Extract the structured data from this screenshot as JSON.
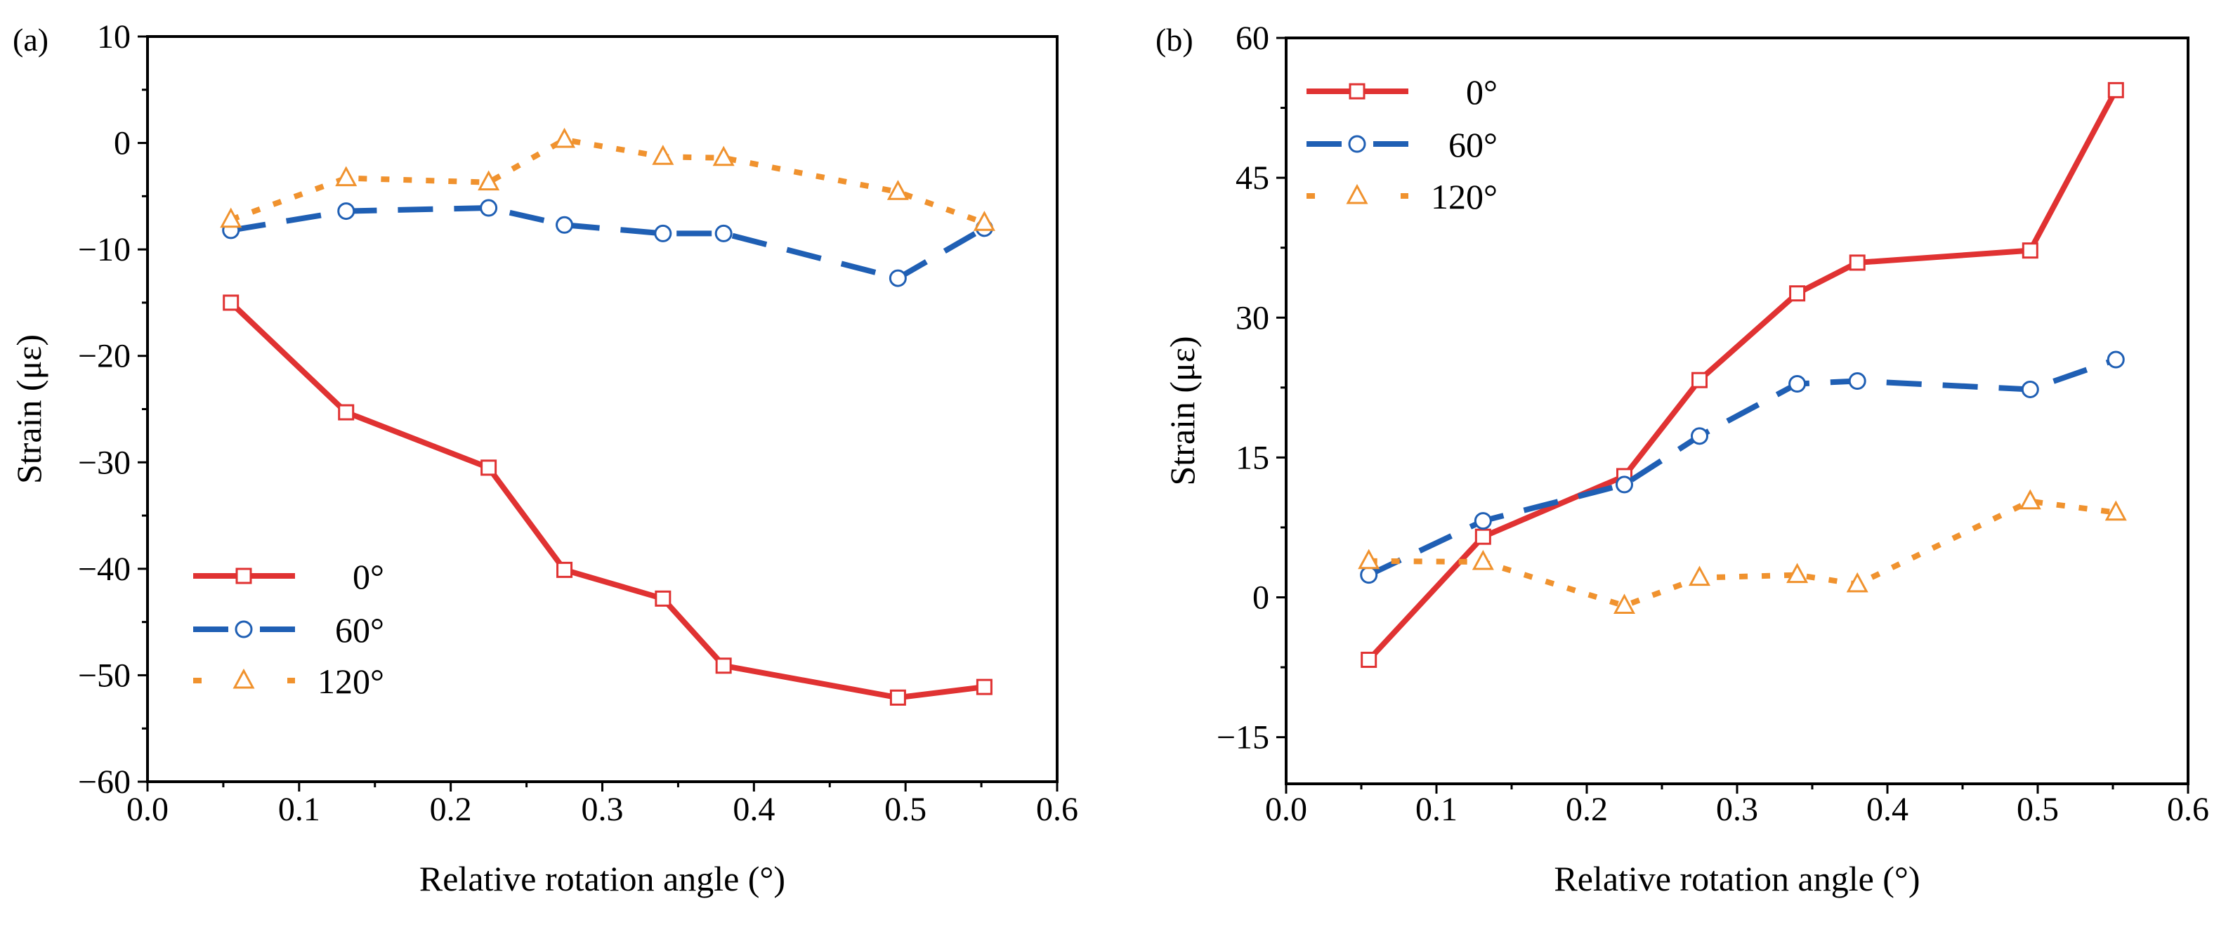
{
  "chart_data": [
    {
      "type": "line",
      "panel_label": "(a)",
      "xlabel": "Relative rotation angle (°)",
      "ylabel": "Strain (με)",
      "xlim": [
        0,
        0.6
      ],
      "ylim": [
        -60,
        10
      ],
      "xticks": [
        0.0,
        0.1,
        0.2,
        0.3,
        0.4,
        0.5,
        0.6
      ],
      "xtick_labels": [
        "0.0",
        "0.1",
        "0.2",
        "0.3",
        "0.4",
        "0.5",
        "0.6"
      ],
      "yticks": [
        -60,
        -50,
        -40,
        -30,
        -20,
        -10,
        0,
        10
      ],
      "ytick_labels": [
        "−60",
        "−50",
        "−40",
        "−30",
        "−20",
        "−10",
        "0",
        "10"
      ],
      "legend_position": "bottom-left",
      "x": [
        0.055,
        0.131,
        0.225,
        0.275,
        0.34,
        0.38,
        0.495,
        0.552
      ],
      "series": [
        {
          "name": "0°",
          "color": "#e03232",
          "marker": "square",
          "style": "solid",
          "values": [
            -15.0,
            -25.3,
            -30.5,
            -40.1,
            -42.8,
            -49.1,
            -52.1,
            -51.1
          ]
        },
        {
          "name": "60°",
          "color": "#1f5fb4",
          "marker": "circle",
          "style": "dash",
          "values": [
            -8.2,
            -6.4,
            -6.1,
            -7.7,
            -8.5,
            -8.5,
            -12.7,
            -8.0
          ]
        },
        {
          "name": "120°",
          "color": "#f0922e",
          "marker": "triangle",
          "style": "dot",
          "values": [
            -7.2,
            -3.3,
            -3.7,
            0.3,
            -1.3,
            -1.4,
            -4.6,
            -7.5
          ]
        }
      ]
    },
    {
      "type": "line",
      "panel_label": "(b)",
      "xlabel": "Relative rotation angle (°)",
      "ylabel": "Strain (με)",
      "xlim": [
        0,
        0.6
      ],
      "ylim": [
        -20,
        60
      ],
      "xticks": [
        0.0,
        0.1,
        0.2,
        0.3,
        0.4,
        0.5,
        0.6
      ],
      "xtick_labels": [
        "0.0",
        "0.1",
        "0.2",
        "0.3",
        "0.4",
        "0.5",
        "0.6"
      ],
      "yticks": [
        -15,
        0,
        15,
        30,
        45,
        60
      ],
      "ytick_labels": [
        "−15",
        "0",
        "15",
        "30",
        "45",
        "60"
      ],
      "legend_position": "top-left",
      "x": [
        0.055,
        0.131,
        0.225,
        0.275,
        0.34,
        0.38,
        0.495,
        0.552
      ],
      "series": [
        {
          "name": "0°",
          "color": "#e03232",
          "marker": "square",
          "style": "solid",
          "values": [
            -6.7,
            6.5,
            13.0,
            23.3,
            32.6,
            35.9,
            37.2,
            54.4
          ]
        },
        {
          "name": "60°",
          "color": "#1f5fb4",
          "marker": "circle",
          "style": "dash",
          "values": [
            2.4,
            8.2,
            12.1,
            17.3,
            22.9,
            23.2,
            22.3,
            25.5
          ]
        },
        {
          "name": "120°",
          "color": "#f0922e",
          "marker": "triangle",
          "style": "dot",
          "values": [
            3.9,
            3.8,
            -0.9,
            2.1,
            2.4,
            1.4,
            10.3,
            9.1
          ]
        }
      ]
    }
  ]
}
